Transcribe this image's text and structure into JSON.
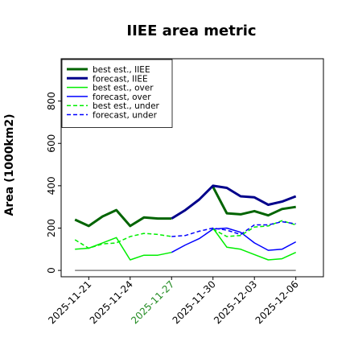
{
  "chart_data": {
    "type": "line",
    "title": "IIEE area metric",
    "xlabel": "",
    "ylabel": "Area (1000km2)",
    "ylim": [
      -30,
      1000
    ],
    "yticks": [
      0,
      200,
      400,
      600,
      800
    ],
    "xlim": [
      "2025-11-19",
      "2025-12-08"
    ],
    "x_tick_labels": [
      "2025-11-21",
      "2025-11-24",
      "2025-11-27",
      "2025-11-30",
      "2025-12-03",
      "2025-12-06"
    ],
    "highlight_tick": "2025-11-27",
    "highlight_color": "#228b22",
    "y_zero_line": true,
    "grid": false,
    "legend_position": "upper-left",
    "dates": [
      "2025-11-20",
      "2025-11-21",
      "2025-11-22",
      "2025-11-23",
      "2025-11-24",
      "2025-11-25",
      "2025-11-26",
      "2025-11-27",
      "2025-11-28",
      "2025-11-29",
      "2025-11-30",
      "2025-12-01",
      "2025-12-02",
      "2025-12-03",
      "2025-12-04",
      "2025-12-05",
      "2025-12-06"
    ],
    "series": [
      {
        "name": "best est., IIEE",
        "color": "#006400",
        "width": 3,
        "dash": "solid",
        "values": [
          240,
          210,
          255,
          285,
          210,
          250,
          245,
          245,
          null,
          null,
          395,
          270,
          265,
          280,
          260,
          290,
          300
        ]
      },
      {
        "name": "forecast, IIEE",
        "color": "#00008b",
        "width": 3,
        "dash": "solid",
        "values": [
          null,
          null,
          null,
          null,
          null,
          null,
          null,
          245,
          285,
          335,
          400,
          390,
          350,
          345,
          310,
          325,
          350
        ]
      },
      {
        "name": "best est., over",
        "color": "#00ee00",
        "width": 1.5,
        "dash": "solid",
        "values": [
          100,
          105,
          130,
          155,
          50,
          72,
          72,
          85,
          null,
          null,
          200,
          110,
          100,
          75,
          50,
          55,
          85
        ]
      },
      {
        "name": "forecast, over",
        "color": "#0000ff",
        "width": 1.5,
        "dash": "solid",
        "values": [
          null,
          null,
          null,
          null,
          null,
          null,
          null,
          85,
          120,
          150,
          195,
          200,
          180,
          130,
          95,
          100,
          135
        ]
      },
      {
        "name": "best est., under",
        "color": "#00ee00",
        "width": 1.5,
        "dash": "dashed",
        "values": [
          145,
          105,
          125,
          130,
          160,
          175,
          170,
          160,
          null,
          null,
          195,
          160,
          165,
          205,
          210,
          235,
          215
        ]
      },
      {
        "name": "forecast, under",
        "color": "#0000ff",
        "width": 1.5,
        "dash": "dashed",
        "values": [
          null,
          null,
          null,
          null,
          null,
          null,
          null,
          160,
          165,
          185,
          200,
          190,
          170,
          215,
          215,
          230,
          220
        ]
      }
    ]
  }
}
